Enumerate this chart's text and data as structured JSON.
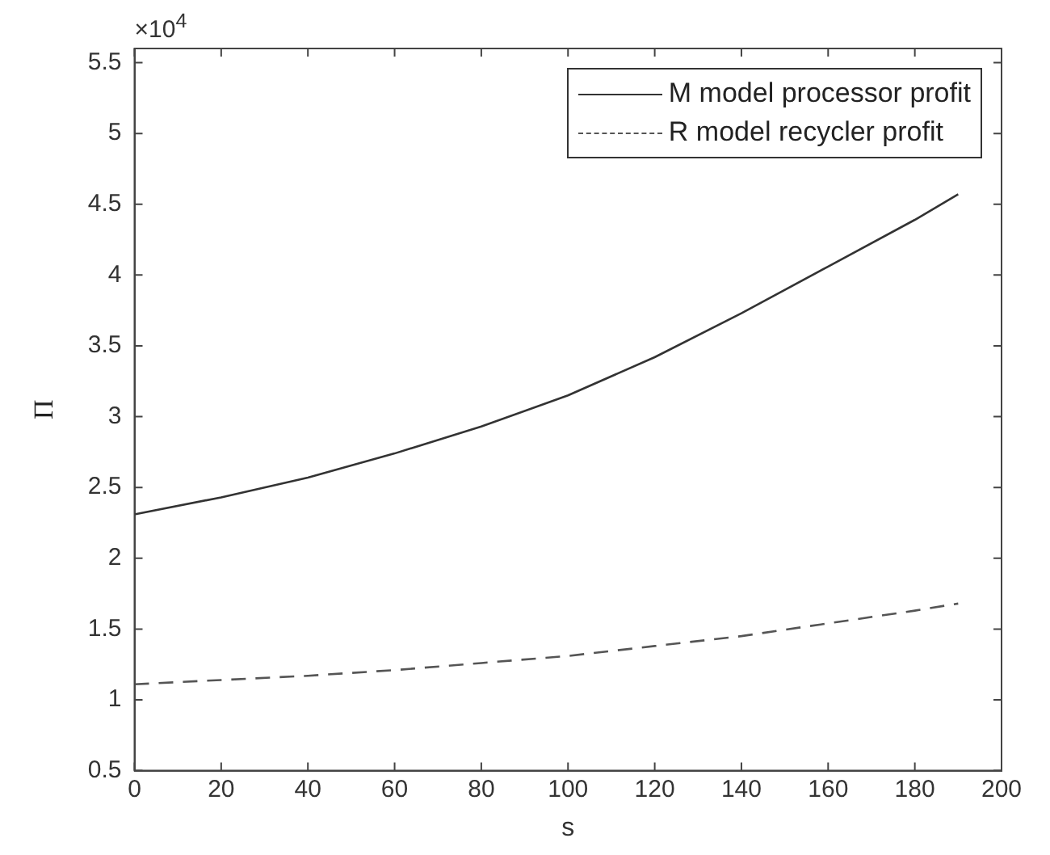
{
  "chart_data": {
    "type": "line",
    "xlabel": "s",
    "ylabel": "Π",
    "annotations": [
      "×10$^{4}$"
    ],
    "xlim": [
      0,
      200
    ],
    "xticks": [
      0,
      20,
      40,
      60,
      80,
      100,
      120,
      140,
      160,
      180,
      200
    ],
    "ylim": [
      0.5,
      5.6
    ],
    "yticks": [
      0.5,
      1,
      1.5,
      2,
      2.5,
      3,
      3.5,
      4,
      4.5,
      5,
      5.5
    ],
    "grid": false,
    "legend": "top right",
    "marker": "none",
    "x": [
      0,
      20,
      40,
      60,
      80,
      100,
      120,
      140,
      160,
      180,
      190
    ],
    "series": [
      {
        "name": "M model processor profit",
        "color": "#333333",
        "line_style": "solid",
        "values": [
          2.31,
          2.43,
          2.57,
          2.74,
          2.93,
          3.15,
          3.42,
          3.73,
          4.06,
          4.39,
          4.57
        ]
      },
      {
        "name": "R model recycler profit",
        "color": "#555555",
        "line_style": "dashed",
        "values": [
          1.11,
          1.14,
          1.17,
          1.21,
          1.26,
          1.31,
          1.38,
          1.45,
          1.54,
          1.63,
          1.68
        ]
      }
    ]
  }
}
